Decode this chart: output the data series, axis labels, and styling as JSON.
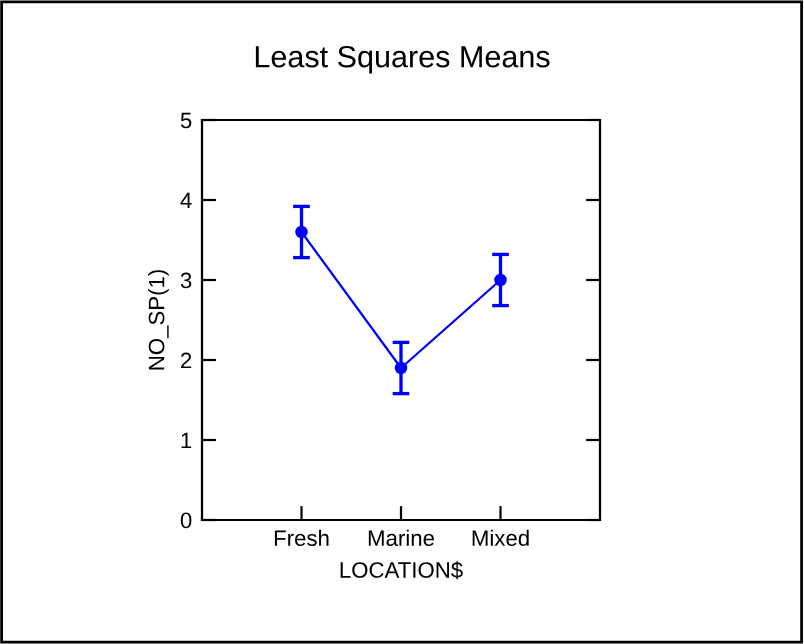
{
  "chart_data": {
    "type": "line",
    "title": "Least Squares Means",
    "xlabel": "LOCATION$",
    "ylabel": "NO_SP(1)",
    "categories": [
      "Fresh",
      "Marine",
      "Mixed"
    ],
    "series": [
      {
        "color": "#0000ff",
        "values": [
          3.6,
          1.9,
          3.0
        ],
        "errors": [
          0.32,
          0.32,
          0.32
        ]
      }
    ],
    "ylim": [
      0,
      5
    ],
    "yticks": [
      0,
      1,
      2,
      3,
      4,
      5
    ],
    "grid": false,
    "legend": false,
    "marker": "circle",
    "line_style": "solid"
  }
}
